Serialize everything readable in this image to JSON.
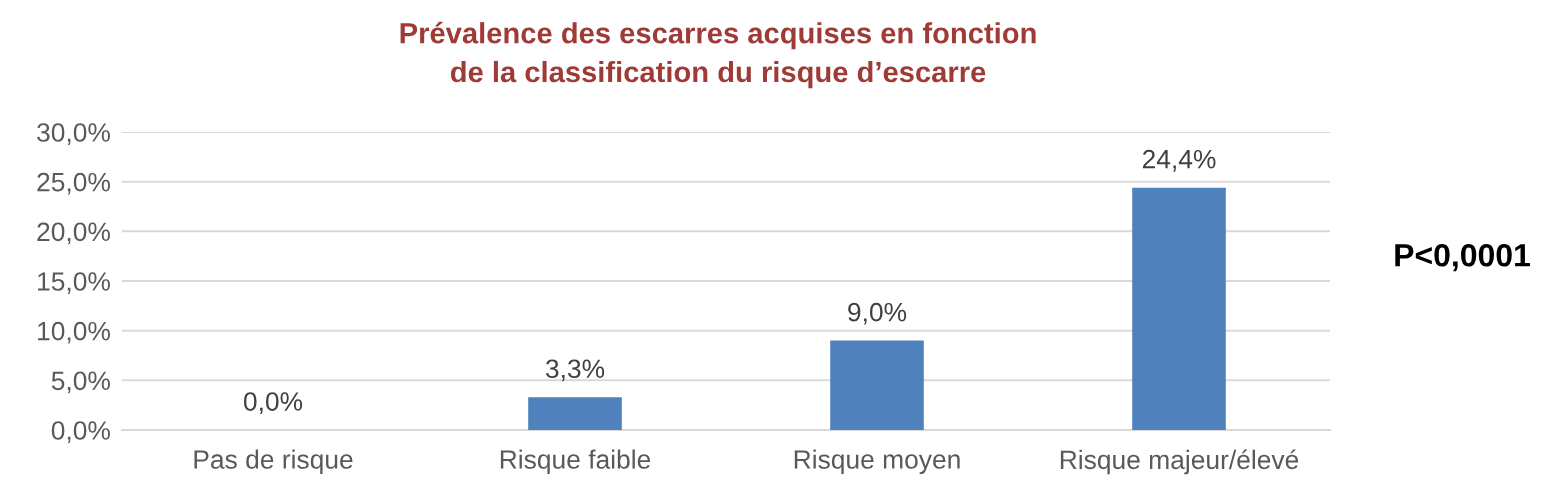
{
  "chart_data": {
    "type": "bar",
    "title": "Prévalence des escarres acquises en fonction\nde la classification du risque d’escarre",
    "categories": [
      "Pas de risque",
      "Risque faible",
      "Risque moyen",
      "Risque majeur/élevé"
    ],
    "values": [
      0,
      3.3,
      9.0,
      24.4
    ],
    "color": "#4f81bd",
    "value_labels": [
      "0,0%",
      "3,3%",
      "9,0%",
      "24,4%"
    ],
    "ylim": [
      0,
      30
    ],
    "yticks": [
      {
        "value": 0,
        "label": "0,0%"
      },
      {
        "value": 5,
        "label": "5,0%"
      },
      {
        "value": 10,
        "label": "10,0%"
      },
      {
        "value": 15,
        "label": "15,0%"
      },
      {
        "value": 20,
        "label": "20,0%"
      },
      {
        "value": 25,
        "label": "25,0%"
      },
      {
        "value": 30,
        "label": "30,0%"
      }
    ],
    "grid": "y",
    "annotations": [
      "P<0,0001"
    ]
  }
}
